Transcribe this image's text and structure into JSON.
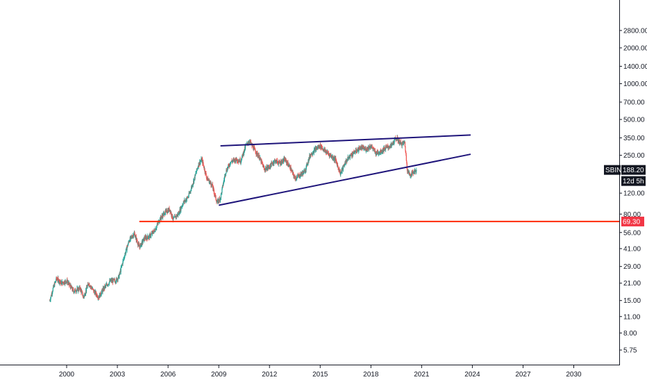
{
  "chart_data": {
    "type": "candlestick",
    "symbol": "SBIN",
    "last_price": "188.20",
    "countdown": "12d 5h",
    "support_level": "69.30",
    "y_scale": "log",
    "grid": false,
    "x_ticks": [
      "2000",
      "2003",
      "2006",
      "2009",
      "2012",
      "2015",
      "2018",
      "2021",
      "2024",
      "2027",
      "2030"
    ],
    "y_ticks": [
      "2800.00",
      "2000.00",
      "1400.00",
      "1000.00",
      "700.00",
      "500.00",
      "350.00",
      "250.00",
      "120.00",
      "80.00",
      "56.00",
      "41.00",
      "29.00",
      "21.00",
      "15.00",
      "11.00",
      "8.00",
      "5.75"
    ],
    "price_path": [
      [
        1999.0,
        15
      ],
      [
        1999.2,
        19
      ],
      [
        1999.4,
        23
      ],
      [
        1999.7,
        21
      ],
      [
        2000.0,
        22
      ],
      [
        2000.4,
        18
      ],
      [
        2000.8,
        19
      ],
      [
        2001.0,
        16
      ],
      [
        2001.3,
        21
      ],
      [
        2001.6,
        18
      ],
      [
        2001.9,
        16
      ],
      [
        2002.2,
        19
      ],
      [
        2002.6,
        22
      ],
      [
        2002.9,
        22
      ],
      [
        2003.1,
        24
      ],
      [
        2003.4,
        35
      ],
      [
        2003.7,
        48
      ],
      [
        2004.0,
        55
      ],
      [
        2004.3,
        42
      ],
      [
        2004.6,
        50
      ],
      [
        2004.9,
        52
      ],
      [
        2005.2,
        58
      ],
      [
        2005.5,
        72
      ],
      [
        2005.8,
        82
      ],
      [
        2006.1,
        88
      ],
      [
        2006.3,
        72
      ],
      [
        2006.6,
        80
      ],
      [
        2006.9,
        100
      ],
      [
        2007.2,
        112
      ],
      [
        2007.5,
        150
      ],
      [
        2007.8,
        210
      ],
      [
        2008.0,
        230
      ],
      [
        2008.3,
        160
      ],
      [
        2008.6,
        140
      ],
      [
        2008.9,
        100
      ],
      [
        2009.1,
        110
      ],
      [
        2009.4,
        180
      ],
      [
        2009.7,
        220
      ],
      [
        2010.0,
        230
      ],
      [
        2010.3,
        225
      ],
      [
        2010.6,
        300
      ],
      [
        2010.8,
        330
      ],
      [
        2011.1,
        280
      ],
      [
        2011.4,
        240
      ],
      [
        2011.7,
        190
      ],
      [
        2012.0,
        200
      ],
      [
        2012.3,
        225
      ],
      [
        2012.6,
        215
      ],
      [
        2012.9,
        230
      ],
      [
        2013.2,
        200
      ],
      [
        2013.5,
        160
      ],
      [
        2013.8,
        170
      ],
      [
        2014.1,
        185
      ],
      [
        2014.4,
        250
      ],
      [
        2014.7,
        280
      ],
      [
        2015.0,
        300
      ],
      [
        2015.3,
        270
      ],
      [
        2015.6,
        250
      ],
      [
        2015.9,
        230
      ],
      [
        2016.2,
        175
      ],
      [
        2016.5,
        220
      ],
      [
        2016.8,
        250
      ],
      [
        2017.1,
        270
      ],
      [
        2017.4,
        290
      ],
      [
        2017.7,
        280
      ],
      [
        2018.0,
        300
      ],
      [
        2018.3,
        260
      ],
      [
        2018.6,
        270
      ],
      [
        2018.9,
        290
      ],
      [
        2019.2,
        300
      ],
      [
        2019.5,
        350
      ],
      [
        2019.8,
        310
      ],
      [
        2020.0,
        320
      ],
      [
        2020.15,
        190
      ],
      [
        2020.3,
        170
      ],
      [
        2020.5,
        180
      ],
      [
        2020.7,
        188.2
      ]
    ],
    "trendlines": [
      {
        "from": [
          2009.1,
          300
        ],
        "to": [
          2023.9,
          370
        ]
      },
      {
        "from": [
          2009.0,
          95
        ],
        "to": [
          2023.9,
          255
        ]
      }
    ],
    "colors": {
      "up": "#26a69a",
      "down": "#ef5350",
      "trendline": "#1e147a",
      "support": "#ff2a00",
      "axis": "#131722",
      "symbol_badge": "#131722",
      "countdown_badge": "#131722",
      "support_badge": "#f23645"
    }
  }
}
